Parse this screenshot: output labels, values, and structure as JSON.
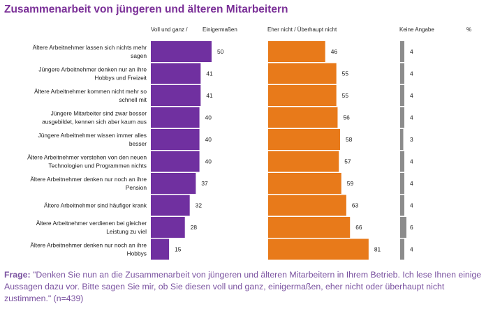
{
  "colors": {
    "title": "#7a2f97",
    "voll": "#7030a0",
    "nicht": "#e87a1a",
    "keine": "#8c8c8c",
    "frage": "#7a52a0"
  },
  "page": {
    "title": "Zusammenarbeit von jüngeren und älteren Mitarbeitern"
  },
  "columns": {
    "voll_1": "Voll und ganz /",
    "voll_2": "Einigermaßen",
    "nicht": "Eher nicht / Überhaupt nicht",
    "keine": "Keine Angabe",
    "unit": "%"
  },
  "footer": {
    "label": "Frage:",
    "text": " \"Denken Sie nun an die Zusammenarbeit von jüngeren und älteren Mitarbeitern in Ihrem Betrieb. Ich lese Ihnen einige Aussagen dazu vor. Bitte sagen Sie mir, ob Sie diesen voll und ganz, einigermaßen, eher nicht oder überhaupt nicht zustimmen.\" (n=439)"
  },
  "chart_data": {
    "type": "bar",
    "orientation": "horizontal",
    "unit": "%",
    "categories": [
      [
        "Ältere Arbeitnehmer lassen sich nichts mehr",
        "sagen"
      ],
      [
        "Jüngere Arbeitnehmer denken nur an ihre",
        "Hobbys und Freizeit"
      ],
      [
        "Ältere Arbeitnehmer kommen nicht mehr so",
        "schnell mit"
      ],
      [
        "Jüngere Mitarbeiter sind zwar besser",
        "ausgebildet, kennen sich aber kaum aus"
      ],
      [
        "Jüngere Arbeitnehmer wissen immer alles",
        "besser"
      ],
      [
        "Ältere Arbeitnehmer verstehen von den neuen",
        "Technologien und Programmen nichts"
      ],
      [
        "Ältere Arbeitnehmer denken nur noch an ihre",
        "Pension"
      ],
      [
        "Ältere Arbeitnehmer sind häufiger krank"
      ],
      [
        "Ältere Arbeitnehmer verdienen bei gleicher",
        "Leistung zu viel"
      ],
      [
        "Ältere Arbeitnehmer denken nur noch an ihre",
        "Hobbys"
      ]
    ],
    "series": [
      {
        "name": "Voll und ganz / Einigermaßen",
        "values": [
          50,
          41,
          41,
          40,
          40,
          40,
          37,
          32,
          28,
          15
        ]
      },
      {
        "name": "Eher nicht / Überhaupt nicht",
        "values": [
          46,
          55,
          55,
          56,
          58,
          57,
          59,
          63,
          66,
          81
        ]
      },
      {
        "name": "Keine Angabe",
        "values": [
          4,
          4,
          4,
          4,
          3,
          4,
          4,
          4,
          6,
          4
        ]
      }
    ]
  }
}
